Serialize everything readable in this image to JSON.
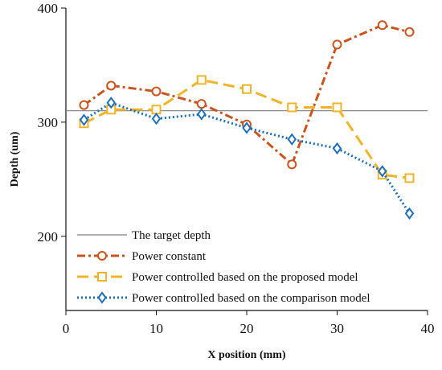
{
  "chart_data": {
    "type": "line",
    "title": "",
    "xlabel": "X position (mm)",
    "ylabel": "Depth (um)",
    "xlim": [
      0,
      40
    ],
    "ylim": [
      135,
      400
    ],
    "xticks": [
      0,
      10,
      20,
      30,
      40
    ],
    "yticks": [
      200,
      300,
      400
    ],
    "x_tick_labels": [
      "0",
      "10",
      "20",
      "30",
      "40"
    ],
    "y_tick_labels": [
      "200",
      "300",
      "400"
    ],
    "grid": false,
    "legend_position": "bottom-center",
    "target_depth": {
      "name": "The target depth",
      "value": 310,
      "color": "#7f7f7f"
    },
    "series": [
      {
        "name": "Power constant",
        "color": "#c9541e",
        "marker": "circle",
        "dash": "dashdot",
        "x": [
          2,
          5,
          10,
          15,
          20,
          25,
          30,
          35,
          38
        ],
        "y": [
          315,
          332,
          327,
          316,
          298,
          263,
          368,
          385,
          379
        ]
      },
      {
        "name": "Power controlled based on the proposed model",
        "color": "#f0b429",
        "marker": "square",
        "dash": "dash",
        "x": [
          2,
          5,
          10,
          15,
          20,
          25,
          30,
          35,
          38
        ],
        "y": [
          299,
          311,
          311,
          337,
          329,
          313,
          313,
          254,
          251
        ]
      },
      {
        "name": "Power controlled based on the comparison model",
        "color": "#1f6fb8",
        "marker": "diamond",
        "dash": "dot",
        "x": [
          2,
          5,
          10,
          15,
          20,
          25,
          30,
          35,
          38
        ],
        "y": [
          302,
          317,
          303,
          307,
          295,
          285,
          277,
          257,
          220
        ]
      }
    ]
  }
}
